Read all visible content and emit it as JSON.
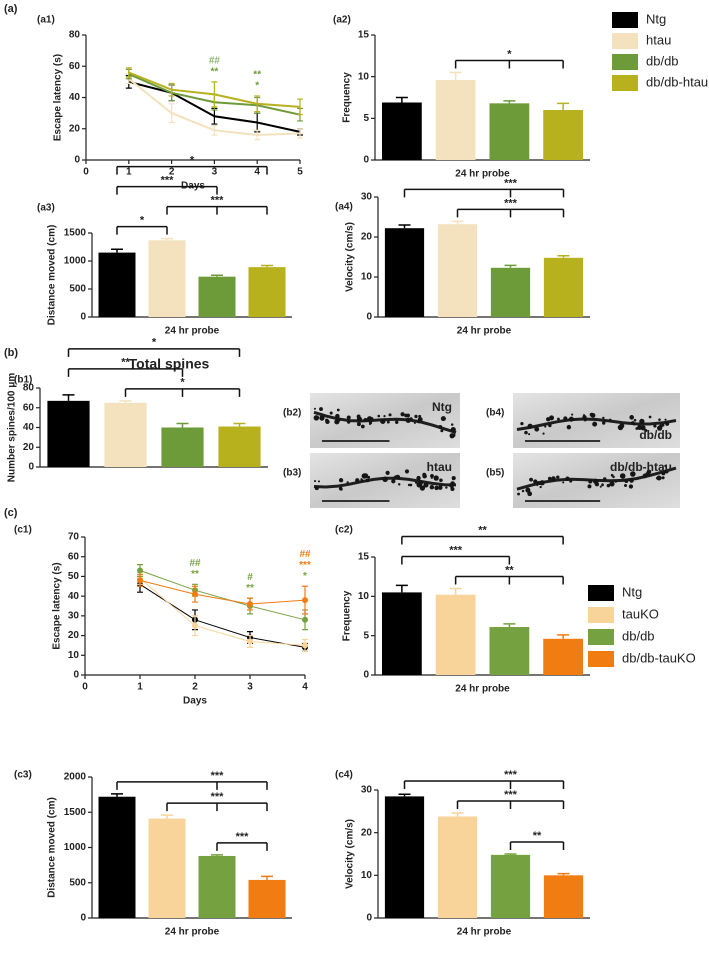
{
  "sections": [
    "(a)",
    "(b)",
    "(c)"
  ],
  "micrographs": [
    {
      "panel": "(b2)",
      "label": "Ntg"
    },
    {
      "panel": "(b3)",
      "label": "htau"
    },
    {
      "panel": "(b4)",
      "label": "db/db"
    },
    {
      "panel": "(b5)",
      "label": "db/db-htau"
    }
  ],
  "chart_data": [
    {
      "type": "line",
      "panel": "(a1)",
      "ylabel": "Escape latency (s)",
      "xlabel": "Days",
      "x": [
        1,
        2,
        3,
        4,
        5
      ],
      "xlim": [
        0,
        5
      ],
      "xticks": [
        0,
        1,
        2,
        3,
        4,
        5
      ],
      "ylim": [
        0,
        80
      ],
      "yticks": [
        0,
        20,
        40,
        60,
        80
      ],
      "markers": false,
      "series": [
        {
          "name": "Ntg",
          "color": "#000000",
          "values": [
            50,
            43,
            28,
            24,
            18
          ],
          "errors": [
            4,
            5,
            5,
            6,
            2
          ]
        },
        {
          "name": "htau",
          "color": "#f3e2bd",
          "values": [
            52,
            30,
            19,
            16,
            17
          ],
          "errors": [
            3,
            6,
            3,
            3,
            3
          ]
        },
        {
          "name": "db/db",
          "color": "#6e9b3a",
          "values": [
            55,
            43,
            37,
            35,
            29
          ],
          "errors": [
            3,
            5,
            5,
            5,
            4
          ]
        },
        {
          "name": "db/db-htau",
          "color": "#b7b11e",
          "values": [
            56,
            45,
            42,
            36,
            34
          ],
          "errors": [
            3,
            4,
            8,
            5,
            5
          ]
        }
      ],
      "annotations": [
        {
          "x": 3,
          "text": "##",
          "color": "#8ab56a"
        },
        {
          "x": 3,
          "text": "**",
          "color": "#6e9b3a"
        },
        {
          "x": 4,
          "text": "**",
          "color": "#6e9b3a"
        },
        {
          "x": 4,
          "text": "*",
          "color": "#6e9b3a"
        }
      ]
    },
    {
      "type": "bar",
      "panel": "(a2)",
      "ylabel": "Frequency",
      "xlabel": "24 hr probe",
      "ylim": [
        0,
        15
      ],
      "yticks": [
        0,
        5,
        10,
        15
      ],
      "values": [
        6.9,
        9.6,
        6.8,
        6.0
      ],
      "errors": [
        0.6,
        0.9,
        0.3,
        0.8
      ],
      "colors": [
        "#000000",
        "#f3e2bd",
        "#6e9b3a",
        "#b7b11e"
      ],
      "brackets": [
        {
          "from": 1,
          "to": [
            2,
            3
          ],
          "label": "*"
        }
      ]
    },
    {
      "type": "bar",
      "panel": "(a3)",
      "ylabel": "Distance moved (cm)",
      "xlabel": "24 hr probe",
      "ylim": [
        0,
        1500
      ],
      "yticks": [
        0,
        500,
        1000,
        1500
      ],
      "values": [
        1150,
        1370,
        720,
        890
      ],
      "errors": [
        60,
        30,
        25,
        30
      ],
      "colors": [
        "#000000",
        "#f3e2bd",
        "#6e9b3a",
        "#b7b11e"
      ],
      "brackets": [
        {
          "from": 0,
          "to": [
            1
          ],
          "label": "*"
        },
        {
          "from": 1,
          "to": [
            2,
            3
          ],
          "label": "***"
        },
        {
          "from": 0,
          "to": [
            2
          ],
          "label": "***"
        },
        {
          "from": 0,
          "to": [
            3
          ],
          "label": "*"
        }
      ]
    },
    {
      "type": "bar",
      "panel": "(a4)",
      "ylabel": "Velocity (cm/s)",
      "xlabel": "24 hr probe",
      "ylim": [
        0,
        30
      ],
      "yticks": [
        0,
        10,
        20,
        30
      ],
      "values": [
        22.2,
        23.2,
        12.3,
        14.8
      ],
      "errors": [
        0.8,
        0.7,
        0.6,
        0.5
      ],
      "colors": [
        "#000000",
        "#f3e2bd",
        "#6e9b3a",
        "#b7b11e"
      ],
      "brackets": [
        {
          "from": 1,
          "to": [
            2,
            3
          ],
          "label": "***"
        },
        {
          "from": 0,
          "to": [
            2,
            3
          ],
          "label": "***"
        }
      ]
    },
    {
      "type": "bar",
      "panel": "(b1)",
      "title": "Total spines",
      "ylabel": "Number spines/100 μm",
      "ylim": [
        0,
        80
      ],
      "yticks": [
        0,
        20,
        40,
        60,
        80
      ],
      "values": [
        67,
        65,
        40,
        41
      ],
      "errors": [
        6,
        2,
        4,
        3
      ],
      "colors": [
        "#000000",
        "#f3e2bd",
        "#6e9b3a",
        "#b7b11e"
      ],
      "brackets": [
        {
          "from": 1,
          "to": [
            2,
            3
          ],
          "label": "*"
        },
        {
          "from": 0,
          "to": [
            2
          ],
          "label": "**"
        },
        {
          "from": 0,
          "to": [
            3
          ],
          "label": "*"
        }
      ]
    },
    {
      "type": "line",
      "panel": "(c1)",
      "ylabel": "Escape latency (s)",
      "xlabel": "Days",
      "x": [
        1,
        2,
        3,
        4
      ],
      "xlim": [
        0,
        4
      ],
      "xticks": [
        0,
        1,
        2,
        3,
        4
      ],
      "ylim": [
        0,
        70
      ],
      "yticks": [
        0,
        10,
        20,
        30,
        40,
        50,
        60,
        70
      ],
      "markers": true,
      "series": [
        {
          "name": "Ntg",
          "color": "#000000",
          "values": [
            46,
            28,
            19,
            14
          ],
          "errors": [
            4,
            5,
            3,
            2
          ]
        },
        {
          "name": "tauKO",
          "color": "#f9d49a",
          "values": [
            49,
            25,
            17,
            15
          ],
          "errors": [
            3,
            5,
            3,
            3
          ]
        },
        {
          "name": "db/db",
          "color": "#76a140",
          "values": [
            53,
            43,
            35,
            28
          ],
          "errors": [
            3,
            3,
            4,
            5
          ]
        },
        {
          "name": "db/db-tauKO",
          "color": "#f07c12",
          "values": [
            48,
            41,
            36,
            38
          ],
          "errors": [
            3,
            4,
            3,
            7
          ]
        }
      ],
      "annotations": [
        {
          "x": 2,
          "text": "##",
          "color": "#76a140"
        },
        {
          "x": 2,
          "text": "**",
          "color": "#76a140"
        },
        {
          "x": 3,
          "text": "#",
          "color": "#76a140"
        },
        {
          "x": 3,
          "text": "**",
          "color": "#76a140"
        },
        {
          "x": 4,
          "text": "##",
          "color": "#f07c12"
        },
        {
          "x": 4,
          "text": "***",
          "color": "#f07c12"
        },
        {
          "x": 4,
          "text": "*",
          "color": "#76a140"
        }
      ]
    },
    {
      "type": "bar",
      "panel": "(c2)",
      "ylabel": "Frequency",
      "xlabel": "24 hr probe",
      "ylim": [
        0,
        15
      ],
      "yticks": [
        0,
        5,
        10,
        15
      ],
      "values": [
        10.5,
        10.2,
        6.1,
        4.6
      ],
      "errors": [
        0.9,
        0.8,
        0.4,
        0.5
      ],
      "colors": [
        "#000000",
        "#f9d49a",
        "#76a140",
        "#f07c12"
      ],
      "brackets": [
        {
          "from": 1,
          "to": [
            2,
            3
          ],
          "label": "**"
        },
        {
          "from": 0,
          "to": [
            2
          ],
          "label": "***"
        },
        {
          "from": 0,
          "to": [
            3
          ],
          "label": "**"
        }
      ]
    },
    {
      "type": "bar",
      "panel": "(c3)",
      "ylabel": "Distance moved (cm)",
      "xlabel": "24 hr probe",
      "ylim": [
        0,
        2000
      ],
      "yticks": [
        0,
        500,
        1000,
        1500,
        2000
      ],
      "values": [
        1720,
        1410,
        880,
        540
      ],
      "errors": [
        40,
        50,
        15,
        50
      ],
      "colors": [
        "#000000",
        "#f9d49a",
        "#76a140",
        "#f07c12"
      ],
      "brackets": [
        {
          "from": 2,
          "to": [
            3
          ],
          "label": "***"
        },
        {
          "from": 1,
          "to": [
            2,
            3
          ],
          "label": "***"
        },
        {
          "from": 0,
          "to": [
            2,
            3
          ],
          "label": "***"
        }
      ]
    },
    {
      "type": "bar",
      "panel": "(c4)",
      "ylabel": "Velocity (cm/s)",
      "xlabel": "24 hr probe",
      "ylim": [
        0,
        30
      ],
      "yticks": [
        0,
        10,
        20,
        30
      ],
      "values": [
        28.5,
        23.8,
        14.8,
        10.0
      ],
      "errors": [
        0.5,
        0.8,
        0.2,
        0.4
      ],
      "colors": [
        "#000000",
        "#f9d49a",
        "#76a140",
        "#f07c12"
      ],
      "brackets": [
        {
          "from": 2,
          "to": [
            3
          ],
          "label": "**"
        },
        {
          "from": 1,
          "to": [
            2,
            3
          ],
          "label": "***"
        },
        {
          "from": 0,
          "to": [
            2,
            3
          ],
          "label": "***"
        }
      ]
    }
  ]
}
